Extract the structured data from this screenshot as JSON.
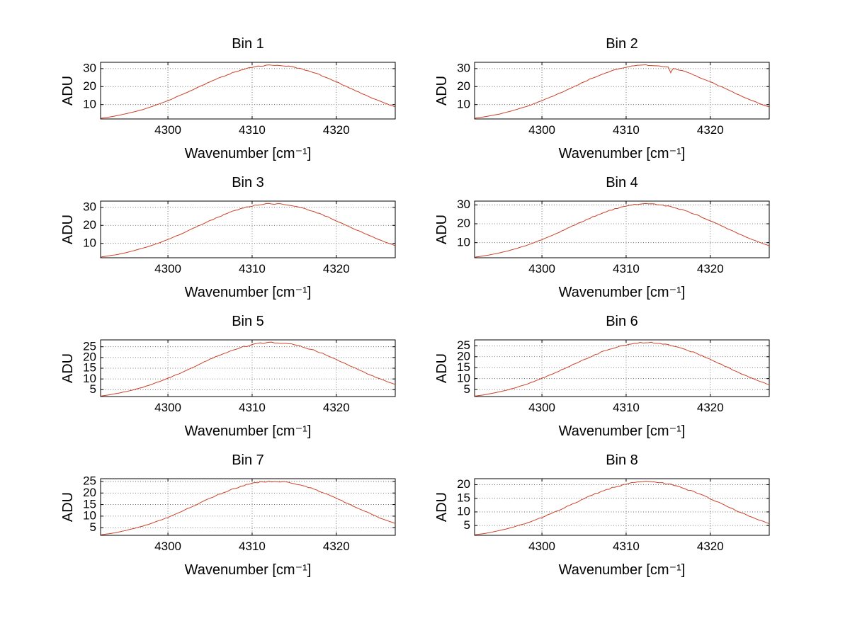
{
  "figure": {
    "background": "#ffffff",
    "line_color": "#cc4125",
    "grid_color": "#555555",
    "axis_color": "#000000"
  },
  "chart_data": [
    {
      "type": "line",
      "title": "Bin 1",
      "xlabel": "Wavenumber [cm⁻¹]",
      "ylabel": "ADU",
      "grid": true,
      "legend": "none",
      "xlim": [
        4292,
        4327
      ],
      "ylim": [
        2,
        33.5
      ],
      "xticks": [
        4300,
        4310,
        4320
      ],
      "yticks": [
        10,
        20,
        30
      ],
      "x": [
        4292,
        4293,
        4294,
        4295,
        4296,
        4297,
        4298,
        4299,
        4300,
        4301,
        4302,
        4303,
        4304,
        4305,
        4306,
        4307,
        4308,
        4309,
        4310,
        4311,
        4312,
        4313,
        4314,
        4315,
        4316,
        4317,
        4318,
        4319,
        4320,
        4321,
        4322,
        4323,
        4324,
        4325,
        4326,
        4327
      ],
      "y": [
        2.4,
        3.0,
        3.9,
        4.9,
        6.0,
        7.2,
        8.8,
        10.4,
        12.2,
        14.2,
        16.2,
        18.3,
        20.5,
        22.6,
        24.6,
        26.5,
        28.2,
        29.7,
        30.8,
        31.5,
        31.9,
        32.0,
        31.6,
        30.8,
        29.6,
        28.3,
        26.6,
        24.7,
        22.6,
        20.5,
        18.3,
        16.2,
        14.1,
        12.2,
        10.4,
        8.7
      ]
    },
    {
      "type": "line",
      "title": "Bin 2",
      "xlabel": "Wavenumber [cm⁻¹]",
      "ylabel": "ADU",
      "grid": true,
      "legend": "none",
      "xlim": [
        4292,
        4327
      ],
      "ylim": [
        2,
        33.5
      ],
      "xticks": [
        4300,
        4310,
        4320
      ],
      "yticks": [
        10,
        20,
        30
      ],
      "x": [
        4292,
        4293,
        4294,
        4295,
        4296,
        4297,
        4298,
        4299,
        4300,
        4301,
        4302,
        4303,
        4304,
        4305,
        4306,
        4307,
        4308,
        4309,
        4310,
        4311,
        4312,
        4313,
        4314,
        4315,
        4315.3,
        4315.6,
        4316,
        4317,
        4318,
        4319,
        4320,
        4321,
        4322,
        4323,
        4324,
        4325,
        4326,
        4327
      ],
      "y": [
        2.4,
        3.1,
        3.9,
        4.8,
        6.0,
        7.3,
        8.7,
        10.3,
        12.2,
        14.1,
        16.1,
        18.3,
        20.4,
        22.6,
        24.7,
        26.6,
        28.3,
        29.6,
        30.9,
        31.6,
        32.0,
        31.9,
        31.5,
        30.8,
        27.6,
        30.3,
        29.7,
        28.2,
        26.5,
        24.6,
        22.7,
        20.5,
        18.4,
        16.2,
        14.1,
        12.2,
        10.3,
        8.7
      ]
    },
    {
      "type": "line",
      "title": "Bin 3",
      "xlabel": "Wavenumber [cm⁻¹]",
      "ylabel": "ADU",
      "grid": true,
      "legend": "none",
      "xlim": [
        4292,
        4327
      ],
      "ylim": [
        2,
        33.5
      ],
      "xticks": [
        4300,
        4310,
        4320
      ],
      "yticks": [
        10,
        20,
        30
      ],
      "x": [
        4292,
        4293,
        4294,
        4295,
        4296,
        4297,
        4298,
        4299,
        4300,
        4301,
        4302,
        4303,
        4304,
        4305,
        4306,
        4307,
        4308,
        4309,
        4310,
        4311,
        4312,
        4313,
        4314,
        4315,
        4316,
        4317,
        4318,
        4319,
        4320,
        4321,
        4322,
        4323,
        4324,
        4325,
        4326,
        4327
      ],
      "y": [
        2.4,
        3.1,
        3.8,
        4.8,
        6.0,
        7.3,
        8.7,
        10.4,
        12.2,
        14.1,
        16.2,
        18.4,
        20.5,
        22.6,
        24.6,
        26.6,
        28.3,
        29.7,
        30.8,
        31.6,
        32.0,
        31.9,
        31.6,
        30.7,
        29.7,
        28.2,
        26.5,
        24.6,
        22.6,
        20.4,
        18.3,
        16.2,
        14.2,
        12.2,
        10.4,
        8.7
      ]
    },
    {
      "type": "line",
      "title": "Bin 4",
      "xlabel": "Wavenumber [cm⁻¹]",
      "ylabel": "ADU",
      "grid": true,
      "legend": "none",
      "xlim": [
        4292,
        4327
      ],
      "ylim": [
        2,
        32
      ],
      "xticks": [
        4300,
        4310,
        4320
      ],
      "yticks": [
        10,
        20,
        30
      ],
      "x": [
        4292,
        4293,
        4294,
        4295,
        4296,
        4297,
        4298,
        4299,
        4300,
        4301,
        4302,
        4303,
        4304,
        4305,
        4306,
        4307,
        4308,
        4309,
        4310,
        4311,
        4312,
        4313,
        4314,
        4315,
        4316,
        4317,
        4318,
        4319,
        4320,
        4321,
        4322,
        4323,
        4324,
        4325,
        4326,
        4327
      ],
      "y": [
        2.3,
        2.9,
        3.7,
        4.6,
        5.7,
        6.9,
        8.3,
        9.9,
        11.6,
        13.5,
        15.4,
        17.5,
        19.5,
        21.6,
        23.5,
        25.3,
        26.9,
        28.3,
        29.3,
        30.1,
        30.5,
        30.5,
        30.1,
        29.3,
        28.3,
        26.9,
        25.3,
        23.5,
        21.6,
        19.5,
        17.5,
        15.4,
        13.5,
        11.6,
        9.9,
        8.3
      ]
    },
    {
      "type": "line",
      "title": "Bin 5",
      "xlabel": "Wavenumber [cm⁻¹]",
      "ylabel": "ADU",
      "grid": true,
      "legend": "none",
      "xlim": [
        4292,
        4327
      ],
      "ylim": [
        1.8,
        28.2
      ],
      "xticks": [
        4300,
        4310,
        4320
      ],
      "yticks": [
        5,
        10,
        15,
        20,
        25
      ],
      "x": [
        4292,
        4293,
        4294,
        4295,
        4296,
        4297,
        4298,
        4299,
        4300,
        4301,
        4302,
        4303,
        4304,
        4305,
        4306,
        4307,
        4308,
        4309,
        4310,
        4311,
        4312,
        4313,
        4314,
        4315,
        4316,
        4317,
        4318,
        4319,
        4320,
        4321,
        4322,
        4323,
        4324,
        4325,
        4326,
        4327
      ],
      "y": [
        2.0,
        2.6,
        3.3,
        4.1,
        5.0,
        6.1,
        7.4,
        8.8,
        10.3,
        11.9,
        13.7,
        15.5,
        17.3,
        19.1,
        20.8,
        22.4,
        23.8,
        25.0,
        26.0,
        26.6,
        27.0,
        27.0,
        26.6,
        26.0,
        25.0,
        23.8,
        22.4,
        20.8,
        19.1,
        17.3,
        15.5,
        13.7,
        11.9,
        10.3,
        8.8,
        7.4
      ]
    },
    {
      "type": "line",
      "title": "Bin 6",
      "xlabel": "Wavenumber [cm⁻¹]",
      "ylabel": "ADU",
      "grid": true,
      "legend": "none",
      "xlim": [
        4292,
        4327
      ],
      "ylim": [
        1.8,
        27.7
      ],
      "xticks": [
        4300,
        4310,
        4320
      ],
      "yticks": [
        5,
        10,
        15,
        20,
        25
      ],
      "x": [
        4292,
        4293,
        4294,
        4295,
        4296,
        4297,
        4298,
        4299,
        4300,
        4301,
        4302,
        4303,
        4304,
        4305,
        4306,
        4307,
        4308,
        4309,
        4310,
        4311,
        4312,
        4313,
        4314,
        4315,
        4316,
        4317,
        4318,
        4319,
        4320,
        4321,
        4322,
        4323,
        4324,
        4325,
        4326,
        4327
      ],
      "y": [
        2.0,
        2.5,
        3.2,
        4.0,
        4.9,
        6.0,
        7.2,
        8.6,
        10.1,
        11.7,
        13.4,
        15.2,
        17.0,
        18.7,
        20.4,
        22.0,
        23.4,
        24.6,
        25.5,
        26.1,
        26.5,
        26.5,
        26.1,
        25.5,
        24.6,
        23.4,
        22.0,
        20.4,
        18.7,
        17.0,
        15.2,
        13.4,
        11.7,
        10.1,
        8.6,
        7.2
      ]
    },
    {
      "type": "line",
      "title": "Bin 7",
      "xlabel": "Wavenumber [cm⁻¹]",
      "ylabel": "ADU",
      "grid": true,
      "legend": "none",
      "xlim": [
        4292,
        4327
      ],
      "ylim": [
        1.7,
        26.2
      ],
      "xticks": [
        4300,
        4310,
        4320
      ],
      "yticks": [
        5,
        10,
        15,
        20,
        25
      ],
      "x": [
        4292,
        4293,
        4294,
        4295,
        4296,
        4297,
        4298,
        4299,
        4300,
        4301,
        4302,
        4303,
        4304,
        4305,
        4306,
        4307,
        4308,
        4309,
        4310,
        4311,
        4312,
        4313,
        4314,
        4315,
        4316,
        4317,
        4318,
        4319,
        4320,
        4321,
        4322,
        4323,
        4324,
        4325,
        4326,
        4327
      ],
      "y": [
        1.9,
        2.4,
        3.0,
        3.8,
        4.7,
        5.7,
        6.8,
        8.1,
        9.5,
        11.1,
        12.7,
        14.3,
        16.0,
        17.7,
        19.3,
        20.7,
        22.1,
        23.2,
        24.1,
        24.7,
        25.0,
        25.0,
        24.7,
        24.1,
        23.2,
        22.1,
        20.7,
        19.3,
        17.7,
        16.0,
        14.3,
        12.7,
        11.1,
        9.5,
        8.1,
        6.8
      ]
    },
    {
      "type": "line",
      "title": "Bin 8",
      "xlabel": "Wavenumber [cm⁻¹]",
      "ylabel": "ADU",
      "grid": true,
      "legend": "none",
      "xlim": [
        4292,
        4327
      ],
      "ylim": [
        1.4,
        22.2
      ],
      "xticks": [
        4300,
        4310,
        4320
      ],
      "yticks": [
        5,
        10,
        15,
        20
      ],
      "x": [
        4292,
        4293,
        4294,
        4295,
        4296,
        4297,
        4298,
        4299,
        4300,
        4301,
        4302,
        4303,
        4304,
        4305,
        4306,
        4307,
        4308,
        4309,
        4310,
        4311,
        4312,
        4313,
        4314,
        4315,
        4316,
        4317,
        4318,
        4319,
        4320,
        4321,
        4322,
        4323,
        4324,
        4325,
        4326,
        4327
      ],
      "y": [
        1.6,
        2.0,
        2.5,
        3.2,
        3.9,
        4.8,
        5.7,
        6.8,
        8.0,
        9.3,
        10.6,
        12.0,
        13.4,
        14.8,
        16.2,
        17.4,
        18.5,
        19.5,
        20.2,
        20.7,
        21.0,
        21.0,
        20.7,
        20.2,
        19.5,
        18.5,
        17.4,
        16.2,
        14.8,
        13.4,
        12.0,
        10.6,
        9.3,
        8.0,
        6.8,
        5.7
      ]
    }
  ]
}
